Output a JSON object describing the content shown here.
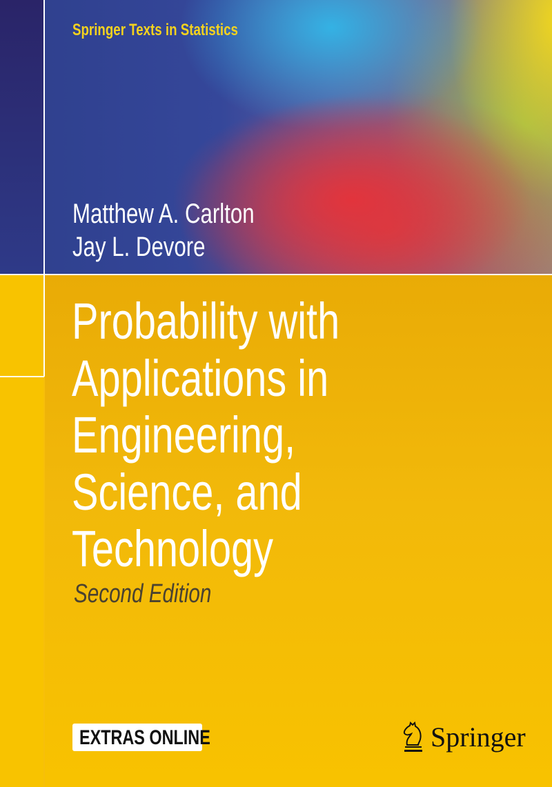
{
  "series": "Springer Texts in Statistics",
  "authors": [
    "Matthew A. Carlton",
    "Jay L. Devore"
  ],
  "title_lines": [
    "Probability with",
    "Applications in",
    "Engineering,",
    "Science, and",
    "Technology"
  ],
  "edition": "Second Edition",
  "badge": "EXTRAS ONLINE",
  "publisher": "Springer",
  "colors": {
    "yellow": "#f8c200",
    "series_text": "#f3d21f",
    "navy": "#2e3f8c",
    "red": "#e2343c",
    "cyan": "#34b2e4"
  }
}
